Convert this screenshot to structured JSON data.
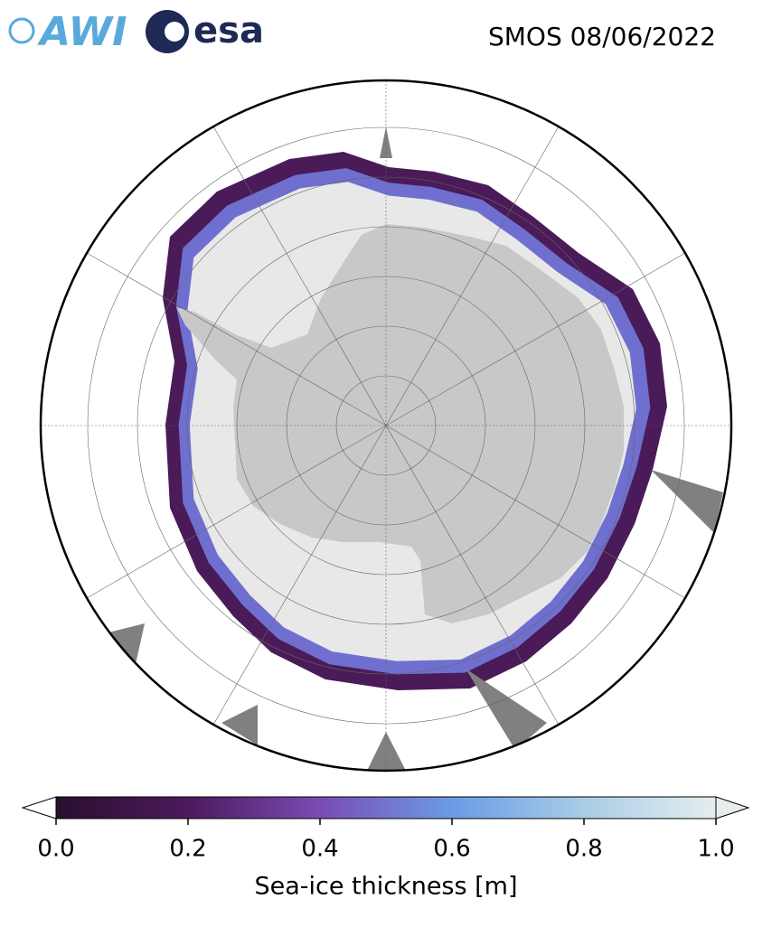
{
  "header": {
    "logos": [
      "AWI",
      "esa"
    ],
    "title": "SMOS 08/06/2022"
  },
  "colorbar": {
    "label": "Sea-ice thickness [m]",
    "lim": [
      0,
      1
    ],
    "ticks": [
      {
        "value": 0,
        "label": "0.0"
      },
      0.2,
      0.4,
      0.6,
      {
        "value": 0.8,
        "label": "0.8"
      },
      {
        "value": 1,
        "label": "1.0"
      }
    ],
    "colors": [
      "#2a0f2e",
      "#4d1a5c",
      "#7a4cb3",
      "#6b9be6",
      "#a8cde6",
      "#e6eeee"
    ]
  }
}
